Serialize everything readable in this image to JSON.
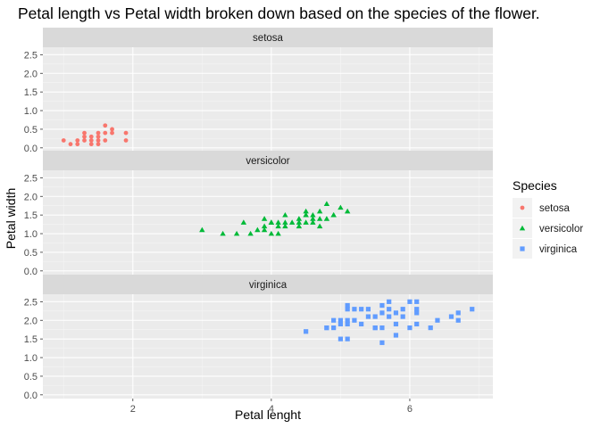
{
  "chart_data": {
    "type": "scatter",
    "title": "Petal length vs Petal width broken down based on the species of the flower.",
    "xlabel": "Petal lenght",
    "ylabel": "Petal width",
    "xlim": [
      0.7,
      7.2
    ],
    "ylim": [
      -0.1,
      2.7
    ],
    "x_ticks": [
      2,
      4,
      6
    ],
    "y_ticks": [
      0.0,
      0.5,
      1.0,
      1.5,
      2.0,
      2.5
    ],
    "y_tick_labels": [
      "0.0",
      "0.5",
      "1.0",
      "1.5",
      "2.0",
      "2.5"
    ],
    "x_tick_labels": [
      "2",
      "4",
      "6"
    ],
    "grid": true,
    "facet": "rows",
    "legend": {
      "title": "Species",
      "position": "right"
    },
    "series": [
      {
        "name": "setosa",
        "color": "#F8766D",
        "shape": "circle",
        "points": [
          [
            1.4,
            0.2
          ],
          [
            1.3,
            0.2
          ],
          [
            1.5,
            0.2
          ],
          [
            1.7,
            0.4
          ],
          [
            1.4,
            0.3
          ],
          [
            1.5,
            0.1
          ],
          [
            1.6,
            0.2
          ],
          [
            1.1,
            0.1
          ],
          [
            1.2,
            0.2
          ],
          [
            1.3,
            0.4
          ],
          [
            1.0,
            0.2
          ],
          [
            1.7,
            0.5
          ],
          [
            1.9,
            0.2
          ],
          [
            1.6,
            0.4
          ],
          [
            1.5,
            0.4
          ],
          [
            1.4,
            0.1
          ],
          [
            1.6,
            0.6
          ],
          [
            1.9,
            0.4
          ],
          [
            1.5,
            0.3
          ],
          [
            1.3,
            0.3
          ],
          [
            1.2,
            0.1
          ]
        ]
      },
      {
        "name": "versicolor",
        "color": "#00BA38",
        "shape": "triangle",
        "points": [
          [
            4.7,
            1.4
          ],
          [
            4.5,
            1.5
          ],
          [
            4.9,
            1.5
          ],
          [
            4.0,
            1.3
          ],
          [
            4.6,
            1.5
          ],
          [
            4.5,
            1.3
          ],
          [
            4.7,
            1.6
          ],
          [
            3.3,
            1.0
          ],
          [
            4.6,
            1.3
          ],
          [
            3.9,
            1.4
          ],
          [
            3.5,
            1.0
          ],
          [
            4.2,
            1.5
          ],
          [
            4.0,
            1.0
          ],
          [
            3.6,
            1.3
          ],
          [
            4.4,
            1.4
          ],
          [
            4.1,
            1.0
          ],
          [
            4.8,
            1.8
          ],
          [
            4.0,
            1.3
          ],
          [
            4.9,
            1.5
          ],
          [
            4.7,
            1.2
          ],
          [
            4.3,
            1.3
          ],
          [
            5.0,
            1.7
          ],
          [
            3.8,
            1.1
          ],
          [
            3.7,
            1.0
          ],
          [
            5.1,
            1.6
          ],
          [
            4.5,
            1.6
          ],
          [
            4.4,
            1.3
          ],
          [
            4.1,
            1.3
          ],
          [
            3.0,
            1.1
          ],
          [
            4.2,
            1.3
          ],
          [
            4.2,
            1.2
          ],
          [
            3.9,
            1.2
          ],
          [
            4.4,
            1.2
          ],
          [
            4.1,
            1.2
          ],
          [
            3.9,
            1.1
          ],
          [
            4.6,
            1.4
          ],
          [
            4.8,
            1.4
          ],
          [
            4.5,
            1.5
          ]
        ]
      },
      {
        "name": "virginica",
        "color": "#619CFF",
        "shape": "square",
        "points": [
          [
            6.0,
            2.5
          ],
          [
            5.1,
            1.9
          ],
          [
            5.9,
            2.1
          ],
          [
            5.6,
            1.8
          ],
          [
            5.8,
            2.2
          ],
          [
            6.6,
            2.1
          ],
          [
            4.5,
            1.7
          ],
          [
            6.3,
            1.8
          ],
          [
            6.1,
            2.5
          ],
          [
            5.1,
            2.0
          ],
          [
            5.3,
            1.9
          ],
          [
            5.5,
            2.1
          ],
          [
            5.0,
            2.0
          ],
          [
            5.1,
            2.4
          ],
          [
            5.3,
            2.3
          ],
          [
            5.5,
            1.8
          ],
          [
            6.7,
            2.2
          ],
          [
            6.9,
            2.3
          ],
          [
            5.0,
            1.5
          ],
          [
            5.7,
            2.3
          ],
          [
            4.9,
            2.0
          ],
          [
            6.7,
            2.0
          ],
          [
            4.9,
            1.8
          ],
          [
            5.7,
            2.1
          ],
          [
            6.0,
            1.8
          ],
          [
            4.8,
            1.8
          ],
          [
            5.8,
            1.6
          ],
          [
            6.1,
            1.9
          ],
          [
            6.4,
            2.0
          ],
          [
            5.6,
            2.2
          ],
          [
            5.1,
            1.5
          ],
          [
            5.6,
            1.4
          ],
          [
            6.1,
            2.3
          ],
          [
            5.6,
            2.4
          ],
          [
            5.5,
            1.8
          ],
          [
            5.4,
            2.1
          ],
          [
            5.4,
            2.3
          ],
          [
            5.1,
            2.3
          ],
          [
            5.9,
            2.3
          ],
          [
            5.7,
            2.5
          ],
          [
            5.2,
            2.3
          ],
          [
            5.2,
            2.0
          ],
          [
            6.1,
            2.2
          ],
          [
            5.8,
            1.9
          ],
          [
            4.8,
            1.8
          ],
          [
            5.0,
            1.9
          ]
        ]
      }
    ]
  }
}
